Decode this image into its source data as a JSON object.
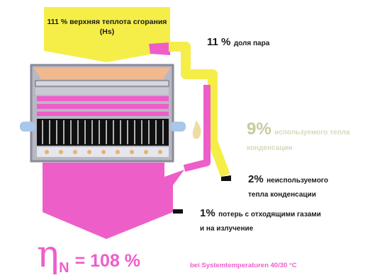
{
  "labels": {
    "gross_heat": "111 % верхняя теплота сгорания (Hs)",
    "steam_share": {
      "pct": "11 %",
      "text": "доля пара"
    },
    "used_condensation": {
      "pct": "9%",
      "line1": "используемого тепла",
      "line2": "конденсации"
    },
    "unused_condensation": {
      "pct": "2%",
      "line1": "неиспользуемого",
      "line2": "тепла конденсации"
    },
    "flue_losses": {
      "pct": "1%",
      "line1": "потерь с отходящими газами",
      "line2": "и на излучение"
    }
  },
  "efficiency": {
    "symbol": "η",
    "subscript": "N",
    "value": "= 108 %"
  },
  "footnote": "bei Systemtemperaturen 40/30 °C",
  "colors": {
    "yellow": "#f5ee49",
    "magenta": "#ee5ec9",
    "peach": "#f0b98e",
    "boiler_frame": "#9a9aa8",
    "burner": "#101010",
    "water_blue": "#a9c7e8",
    "flame": "#e8b26a"
  }
}
